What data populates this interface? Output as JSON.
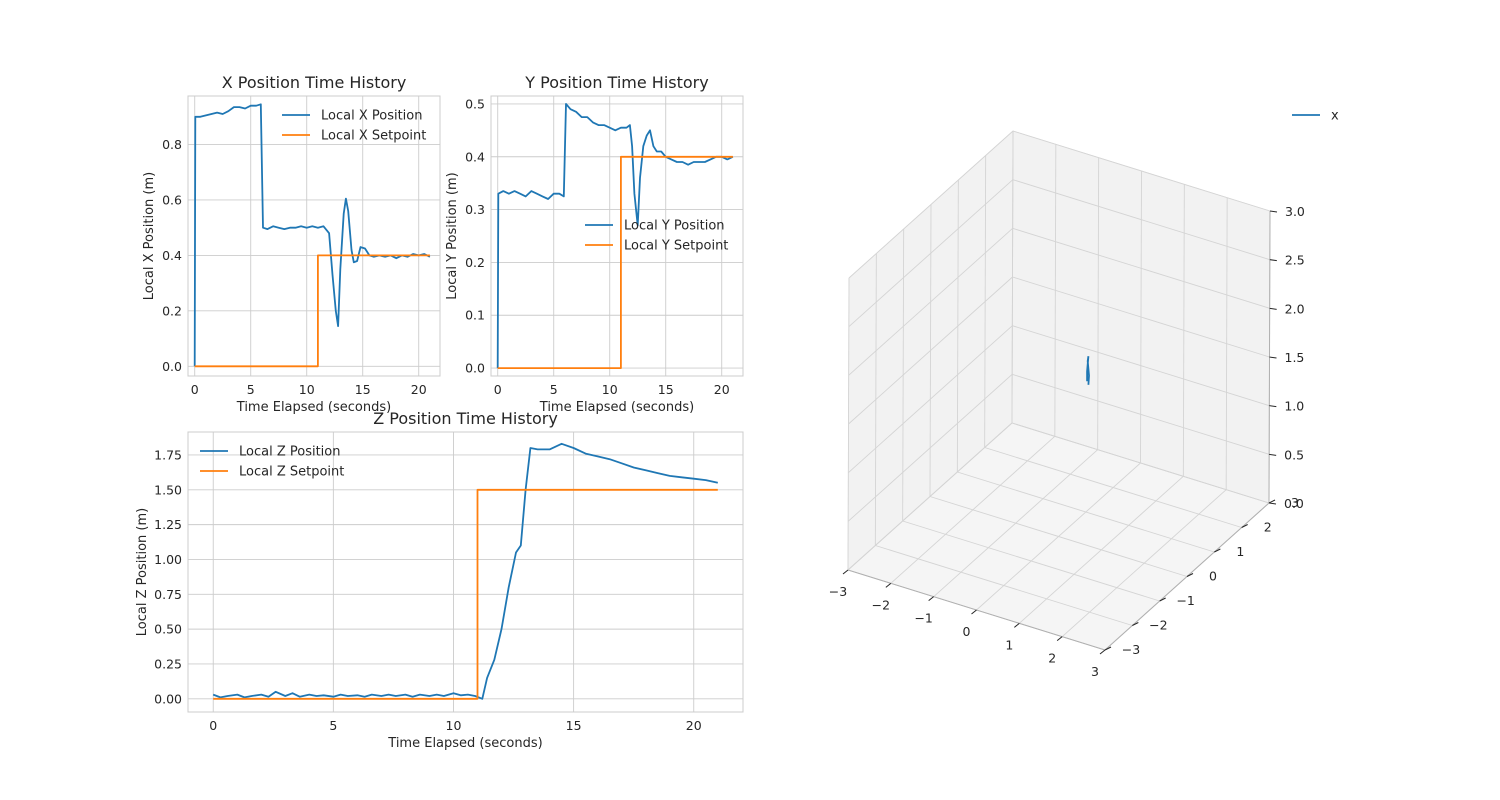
{
  "colors": {
    "position": "#1f77b4",
    "setpoint": "#ff7f0e",
    "grid": "#cccccc",
    "frame": "#cccccc"
  },
  "chart_data": [
    {
      "id": "x",
      "type": "line",
      "title": "X Position Time History",
      "xlabel": "Time Elapsed (seconds)",
      "ylabel": "Local X Position (m)",
      "xlim": [
        -0.6,
        21.9
      ],
      "ylim": [
        -0.035,
        0.975
      ],
      "xticks": [
        0,
        5,
        10,
        15,
        20
      ],
      "yticks": [
        0.0,
        0.2,
        0.4,
        0.6,
        0.8
      ],
      "ytick_labels": [
        "0.0",
        "0.2",
        "0.4",
        "0.6",
        "0.8"
      ],
      "legend": "upper right",
      "series": [
        {
          "name": "Local X Position",
          "role": "position",
          "points": [
            [
              0,
              0
            ],
            [
              0.05,
              0.9
            ],
            [
              0.5,
              0.9
            ],
            [
              1,
              0.905
            ],
            [
              1.5,
              0.91
            ],
            [
              2,
              0.915
            ],
            [
              2.5,
              0.91
            ],
            [
              3,
              0.92
            ],
            [
              3.5,
              0.935
            ],
            [
              4,
              0.935
            ],
            [
              4.5,
              0.93
            ],
            [
              5,
              0.94
            ],
            [
              5.5,
              0.94
            ],
            [
              5.9,
              0.945
            ],
            [
              6.1,
              0.5
            ],
            [
              6.5,
              0.495
            ],
            [
              7,
              0.505
            ],
            [
              7.5,
              0.5
            ],
            [
              8,
              0.495
            ],
            [
              8.5,
              0.5
            ],
            [
              9,
              0.5
            ],
            [
              9.5,
              0.505
            ],
            [
              10,
              0.5
            ],
            [
              10.5,
              0.505
            ],
            [
              11,
              0.5
            ],
            [
              11.5,
              0.505
            ],
            [
              12,
              0.48
            ],
            [
              12.3,
              0.33
            ],
            [
              12.6,
              0.2
            ],
            [
              12.8,
              0.145
            ],
            [
              13,
              0.35
            ],
            [
              13.3,
              0.55
            ],
            [
              13.5,
              0.605
            ],
            [
              13.7,
              0.56
            ],
            [
              14,
              0.42
            ],
            [
              14.2,
              0.375
            ],
            [
              14.5,
              0.38
            ],
            [
              14.8,
              0.43
            ],
            [
              15.2,
              0.425
            ],
            [
              15.6,
              0.4
            ],
            [
              16,
              0.395
            ],
            [
              16.5,
              0.4
            ],
            [
              17,
              0.395
            ],
            [
              17.5,
              0.4
            ],
            [
              18,
              0.39
            ],
            [
              18.5,
              0.4
            ],
            [
              19,
              0.395
            ],
            [
              19.5,
              0.405
            ],
            [
              20,
              0.4
            ],
            [
              20.5,
              0.405
            ],
            [
              21,
              0.395
            ]
          ]
        },
        {
          "name": "Local X Setpoint",
          "role": "setpoint",
          "points": [
            [
              0,
              0
            ],
            [
              11,
              0
            ],
            [
              11,
              0.4
            ],
            [
              21,
              0.4
            ]
          ]
        }
      ]
    },
    {
      "id": "y",
      "type": "line",
      "title": "Y Position Time History",
      "xlabel": "Time Elapsed (seconds)",
      "ylabel": "Local Y Position (m)",
      "xlim": [
        -0.6,
        21.9
      ],
      "ylim": [
        -0.015,
        0.515
      ],
      "xticks": [
        0,
        5,
        10,
        15,
        20
      ],
      "yticks": [
        0.0,
        0.1,
        0.2,
        0.3,
        0.4,
        0.5
      ],
      "ytick_labels": [
        "0.0",
        "0.1",
        "0.2",
        "0.3",
        "0.4",
        "0.5"
      ],
      "legend": "center right",
      "series": [
        {
          "name": "Local Y Position",
          "role": "position",
          "points": [
            [
              0,
              0
            ],
            [
              0.05,
              0.33
            ],
            [
              0.5,
              0.335
            ],
            [
              1,
              0.33
            ],
            [
              1.5,
              0.335
            ],
            [
              2,
              0.33
            ],
            [
              2.5,
              0.325
            ],
            [
              3,
              0.335
            ],
            [
              3.5,
              0.33
            ],
            [
              4,
              0.325
            ],
            [
              4.5,
              0.32
            ],
            [
              5,
              0.33
            ],
            [
              5.5,
              0.33
            ],
            [
              5.9,
              0.325
            ],
            [
              6.1,
              0.5
            ],
            [
              6.5,
              0.49
            ],
            [
              7,
              0.485
            ],
            [
              7.5,
              0.475
            ],
            [
              8,
              0.475
            ],
            [
              8.5,
              0.465
            ],
            [
              9,
              0.46
            ],
            [
              9.5,
              0.46
            ],
            [
              10,
              0.455
            ],
            [
              10.5,
              0.45
            ],
            [
              11,
              0.455
            ],
            [
              11.5,
              0.455
            ],
            [
              11.8,
              0.46
            ],
            [
              12,
              0.42
            ],
            [
              12.2,
              0.33
            ],
            [
              12.5,
              0.27
            ],
            [
              12.7,
              0.36
            ],
            [
              13,
              0.42
            ],
            [
              13.3,
              0.44
            ],
            [
              13.6,
              0.45
            ],
            [
              13.9,
              0.42
            ],
            [
              14.2,
              0.41
            ],
            [
              14.6,
              0.41
            ],
            [
              15,
              0.4
            ],
            [
              15.5,
              0.395
            ],
            [
              16,
              0.39
            ],
            [
              16.5,
              0.39
            ],
            [
              17,
              0.385
            ],
            [
              17.5,
              0.39
            ],
            [
              18,
              0.39
            ],
            [
              18.5,
              0.39
            ],
            [
              19,
              0.395
            ],
            [
              19.5,
              0.4
            ],
            [
              20,
              0.4
            ],
            [
              20.5,
              0.395
            ],
            [
              21,
              0.4
            ]
          ]
        },
        {
          "name": "Local Y Setpoint",
          "role": "setpoint",
          "points": [
            [
              0,
              0
            ],
            [
              11,
              0
            ],
            [
              11,
              0.4
            ],
            [
              21,
              0.4
            ]
          ]
        }
      ]
    },
    {
      "id": "z",
      "type": "line",
      "title": "Z Position Time History",
      "xlabel": "Time Elapsed (seconds)",
      "ylabel": "Local Z Position (m)",
      "xlim": [
        -1.05,
        22.05
      ],
      "ylim": [
        -0.095,
        1.915
      ],
      "xticks": [
        0,
        5,
        10,
        15,
        20
      ],
      "yticks": [
        0.0,
        0.25,
        0.5,
        0.75,
        1.0,
        1.25,
        1.5,
        1.75
      ],
      "ytick_labels": [
        "0.00",
        "0.25",
        "0.50",
        "0.75",
        "1.00",
        "1.25",
        "1.50",
        "1.75"
      ],
      "legend": "upper left",
      "series": [
        {
          "name": "Local Z Position",
          "role": "position",
          "points": [
            [
              0,
              0.03
            ],
            [
              0.3,
              0.01
            ],
            [
              0.6,
              0.02
            ],
            [
              1,
              0.03
            ],
            [
              1.3,
              0.01
            ],
            [
              1.6,
              0.02
            ],
            [
              2,
              0.03
            ],
            [
              2.3,
              0.015
            ],
            [
              2.6,
              0.05
            ],
            [
              3,
              0.02
            ],
            [
              3.3,
              0.04
            ],
            [
              3.6,
              0.015
            ],
            [
              4,
              0.03
            ],
            [
              4.3,
              0.02
            ],
            [
              4.6,
              0.025
            ],
            [
              5,
              0.015
            ],
            [
              5.3,
              0.03
            ],
            [
              5.6,
              0.02
            ],
            [
              6,
              0.025
            ],
            [
              6.3,
              0.015
            ],
            [
              6.6,
              0.03
            ],
            [
              7,
              0.02
            ],
            [
              7.3,
              0.03
            ],
            [
              7.6,
              0.02
            ],
            [
              8,
              0.03
            ],
            [
              8.3,
              0.015
            ],
            [
              8.6,
              0.03
            ],
            [
              9,
              0.02
            ],
            [
              9.3,
              0.03
            ],
            [
              9.6,
              0.02
            ],
            [
              10,
              0.04
            ],
            [
              10.3,
              0.025
            ],
            [
              10.6,
              0.03
            ],
            [
              10.9,
              0.02
            ],
            [
              11.2,
              0.0
            ],
            [
              11.4,
              0.15
            ],
            [
              11.7,
              0.28
            ],
            [
              12,
              0.5
            ],
            [
              12.3,
              0.8
            ],
            [
              12.6,
              1.05
            ],
            [
              12.8,
              1.1
            ],
            [
              13,
              1.5
            ],
            [
              13.2,
              1.8
            ],
            [
              13.5,
              1.79
            ],
            [
              14,
              1.79
            ],
            [
              14.5,
              1.83
            ],
            [
              15,
              1.8
            ],
            [
              15.5,
              1.76
            ],
            [
              16,
              1.74
            ],
            [
              16.5,
              1.72
            ],
            [
              17,
              1.69
            ],
            [
              17.5,
              1.66
            ],
            [
              18,
              1.64
            ],
            [
              18.5,
              1.62
            ],
            [
              19,
              1.6
            ],
            [
              19.5,
              1.59
            ],
            [
              20,
              1.58
            ],
            [
              20.5,
              1.57
            ],
            [
              21,
              1.55
            ]
          ]
        },
        {
          "name": "Local Z Setpoint",
          "role": "setpoint",
          "points": [
            [
              0,
              0
            ],
            [
              11,
              0
            ],
            [
              11,
              1.5
            ],
            [
              21,
              1.5
            ]
          ]
        }
      ]
    },
    {
      "id": "xyz",
      "type": "line",
      "projection": "3d",
      "xlim": [
        -3,
        3
      ],
      "ylim": [
        -3,
        3
      ],
      "zlim": [
        0,
        3
      ],
      "xticks": [
        -3,
        -2,
        -1,
        0,
        1,
        2,
        3
      ],
      "yticks": [
        -3,
        -2,
        -1,
        0,
        1,
        2,
        3
      ],
      "zticks": [
        0,
        0.5,
        1.0,
        1.5,
        2.0,
        2.5,
        3.0
      ],
      "xtick_labels": [
        "−3",
        "−2",
        "−1",
        "0",
        "1",
        "2",
        "3"
      ],
      "ytick_labels": [
        "−3",
        "−2",
        "−1",
        "0",
        "1",
        "2",
        "3"
      ],
      "ztick_labels": [
        "0.0",
        "0.5",
        "1.0",
        "1.5",
        "2.0",
        "2.5",
        "3.0"
      ],
      "legend": "upper right",
      "series": [
        {
          "name": "x",
          "role": "position",
          "points": [
            [
              0.4,
              0.45,
              1.5
            ],
            [
              0.42,
              0.44,
              1.6
            ],
            [
              0.4,
              0.42,
              1.75
            ],
            [
              0.41,
              0.43,
              1.8
            ],
            [
              0.4,
              0.4,
              1.65
            ],
            [
              0.4,
              0.4,
              1.55
            ]
          ]
        }
      ]
    }
  ]
}
